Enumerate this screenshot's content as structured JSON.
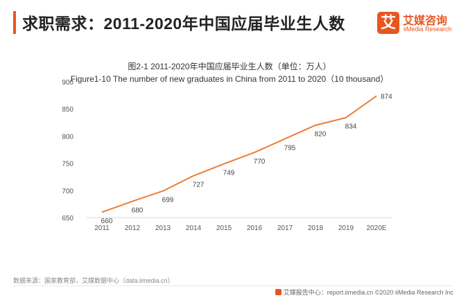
{
  "header": {
    "title": "求职需求：2011-2020年中国应届毕业生人数",
    "accent_color": "#e8561f"
  },
  "logo": {
    "glyph": "艾",
    "name_cn": "艾媒咨询",
    "name_en": "iiMedia Research",
    "color": "#e8561f"
  },
  "chart_data": {
    "type": "line",
    "title": "图2-1 2011-2020年中国应届毕业生人数（单位：万人）",
    "subtitle": "Figure1-10 The number of new graduates in China from 2011 to 2020（10 thousand）",
    "categories": [
      "2011",
      "2012",
      "2013",
      "2014",
      "2015",
      "2016",
      "2017",
      "2018",
      "2019",
      "2020E"
    ],
    "series": [
      {
        "values": [
          660,
          680,
          699,
          727,
          749,
          770,
          795,
          820,
          834,
          874
        ],
        "color": "#ed7d31"
      }
    ],
    "ylim": [
      650,
      900
    ],
    "yticks": [
      650,
      700,
      750,
      800,
      850,
      900
    ],
    "grid": false,
    "legend": "none"
  },
  "footer": {
    "source": "数据来源：国家教育部，艾媒数据中心（data.iimedia.cn）",
    "report": "艾媒报告中心：report.iimedia.cn  ©2020  iiMedia Research  Inc"
  }
}
